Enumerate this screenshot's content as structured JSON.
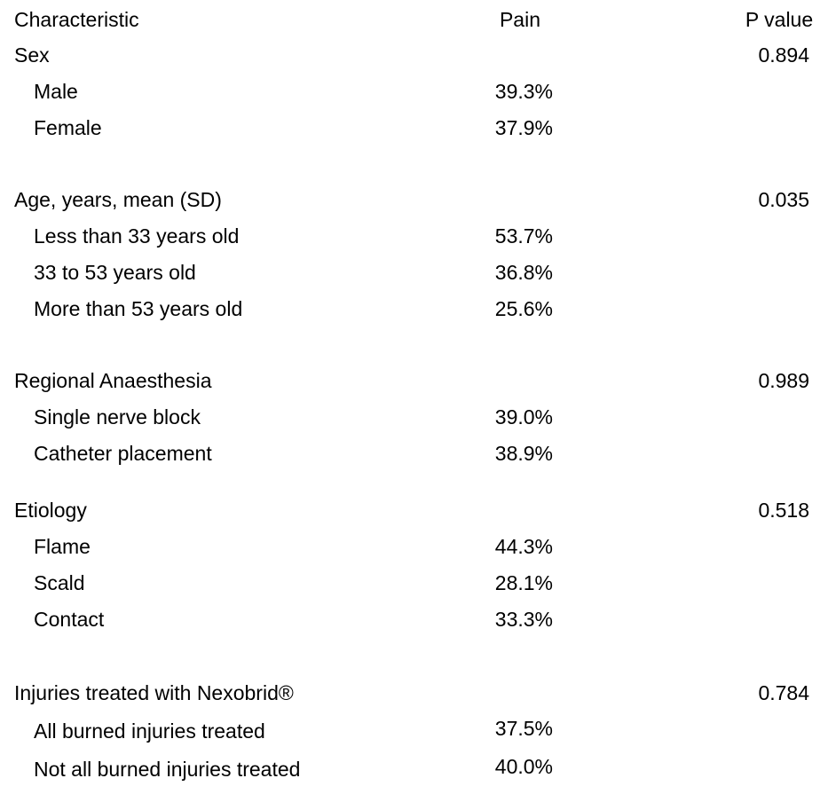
{
  "table": {
    "headers": [
      "Characteristic",
      "Pain",
      "P value"
    ],
    "groups": [
      {
        "label": "Sex",
        "p_value": "0.894",
        "items": [
          {
            "label": "Male",
            "pain": "39.3%"
          },
          {
            "label": "Female",
            "pain": "37.9%"
          }
        ]
      },
      {
        "label": "Age, years, mean (SD)",
        "p_value": "0.035",
        "items": [
          {
            "label": "Less than 33 years old",
            "pain": "53.7%"
          },
          {
            "label": "33 to 53 years old",
            "pain": "36.8%"
          },
          {
            "label": "More than 53 years old",
            "pain": "25.6%"
          }
        ]
      },
      {
        "label": "Regional Anaesthesia",
        "p_value": "0.989",
        "items": [
          {
            "label": "Single nerve block",
            "pain": "39.0%"
          },
          {
            "label": "Catheter placement",
            "pain": "38.9%"
          }
        ]
      },
      {
        "label": "Etiology",
        "p_value": "0.518",
        "items": [
          {
            "label": "Flame",
            "pain": "44.3%"
          },
          {
            "label": "Scald",
            "pain": "28.1%"
          },
          {
            "label": "Contact",
            "pain": "33.3%"
          }
        ]
      },
      {
        "label": "Injuries treated with Nexobrid®",
        "p_value": "0.784",
        "items": [
          {
            "label": "All burned injuries treated",
            "pain": "37.5%"
          },
          {
            "label": "Not all burned injuries treated",
            "pain": "40.0%"
          }
        ]
      }
    ]
  }
}
